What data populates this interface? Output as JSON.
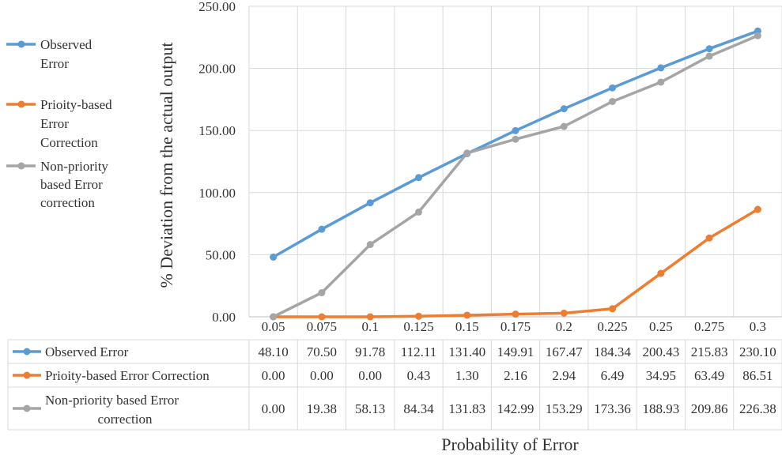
{
  "chart_data": {
    "type": "line",
    "xlabel": "Probability of Error",
    "ylabel": "% Deviation from the actual output",
    "ylim": [
      0,
      250
    ],
    "yticks": [
      "0.00",
      "50.00",
      "100.00",
      "150.00",
      "200.00",
      "250.00"
    ],
    "grid": true,
    "legend_position": "left",
    "data_table": true,
    "categories": [
      "0.05",
      "0.075",
      "0.1",
      "0.125",
      "0.15",
      "0.175",
      "0.2",
      "0.225",
      "0.25",
      "0.275",
      "0.3"
    ],
    "series": [
      {
        "name": "Observed Error",
        "legend_lines": [
          "Observed",
          "Error"
        ],
        "table_lines": [
          "Observed Error"
        ],
        "color": "#5B9BD5",
        "values": [
          48.1,
          70.5,
          91.78,
          112.11,
          131.4,
          149.91,
          167.47,
          184.34,
          200.43,
          215.83,
          230.1
        ],
        "labels": [
          "48.10",
          "70.50",
          "91.78",
          "112.11",
          "131.40",
          "149.91",
          "167.47",
          "184.34",
          "200.43",
          "215.83",
          "230.10"
        ]
      },
      {
        "name": "Prioity-based Error Correction",
        "legend_lines": [
          "Prioity-based",
          "Error",
          "Correction"
        ],
        "table_lines": [
          "Prioity-based Error Correction"
        ],
        "color": "#ED7D31",
        "values": [
          0.0,
          0.0,
          0.0,
          0.43,
          1.3,
          2.16,
          2.94,
          6.49,
          34.95,
          63.49,
          86.51
        ],
        "labels": [
          "0.00",
          "0.00",
          "0.00",
          "0.43",
          "1.30",
          "2.16",
          "2.94",
          "6.49",
          "34.95",
          "63.49",
          "86.51"
        ]
      },
      {
        "name": "Non-priority based Error correction",
        "legend_lines": [
          "Non-priority",
          "based Error",
          "correction"
        ],
        "table_lines": [
          "Non-priority based Error",
          "correction"
        ],
        "color": "#A5A5A5",
        "values": [
          0.0,
          19.38,
          58.13,
          84.34,
          131.83,
          142.99,
          153.29,
          173.36,
          188.93,
          209.86,
          226.38
        ],
        "labels": [
          "0.00",
          "19.38",
          "58.13",
          "84.34",
          "131.83",
          "142.99",
          "153.29",
          "173.36",
          "188.93",
          "209.86",
          "226.38"
        ]
      }
    ]
  }
}
